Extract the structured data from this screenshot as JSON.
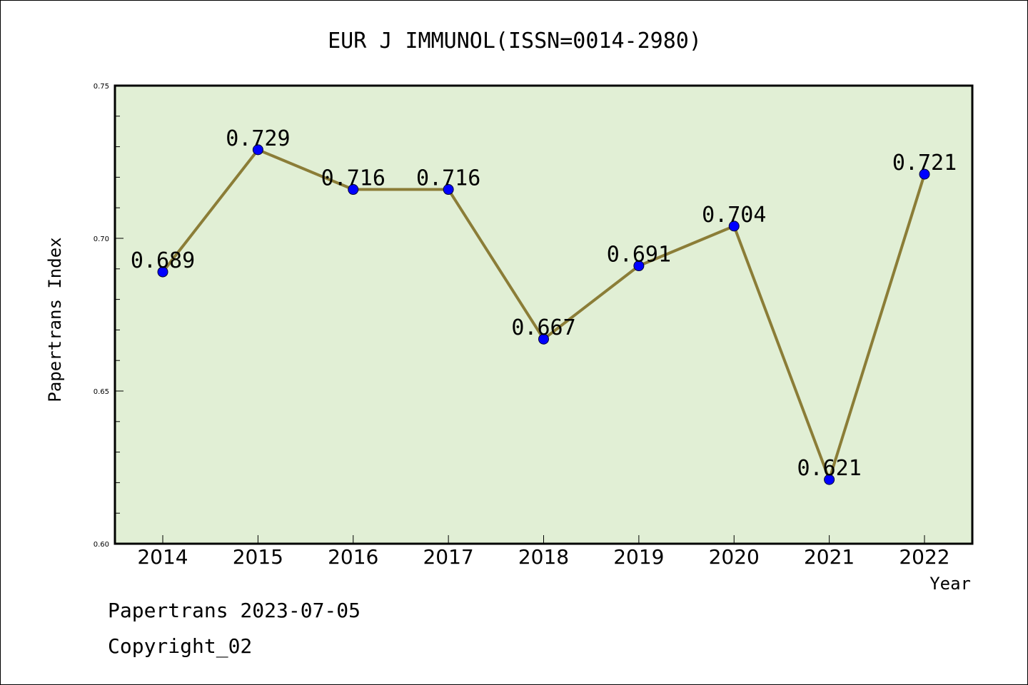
{
  "chart_data": {
    "type": "line",
    "title": "EUR J IMMUNOL(ISSN=0014-2980)",
    "xlabel": "Year",
    "ylabel": "Papertrans Index",
    "categories": [
      "2014",
      "2015",
      "2016",
      "2017",
      "2018",
      "2019",
      "2020",
      "2021",
      "2022"
    ],
    "series": [
      {
        "values": [
          0.689,
          0.729,
          0.716,
          0.716,
          0.667,
          0.691,
          0.704,
          0.621,
          0.721
        ],
        "data_labels": [
          "0.689",
          "0.729",
          "0.716",
          "0.716",
          "0.667",
          "0.691",
          "0.704",
          "0.621",
          "0.721"
        ],
        "line_color": "#8B7D37",
        "marker_color": "#0000FF"
      }
    ],
    "ylim": [
      0.6,
      0.75
    ],
    "yticks": [
      "0.60",
      "0.65",
      "0.70",
      "0.75"
    ],
    "grid": false,
    "legend": "none",
    "plot_background": "#E1EFD5"
  },
  "footer": {
    "line1": "Papertrans 2023-07-05",
    "line2": "Copyright_02"
  }
}
